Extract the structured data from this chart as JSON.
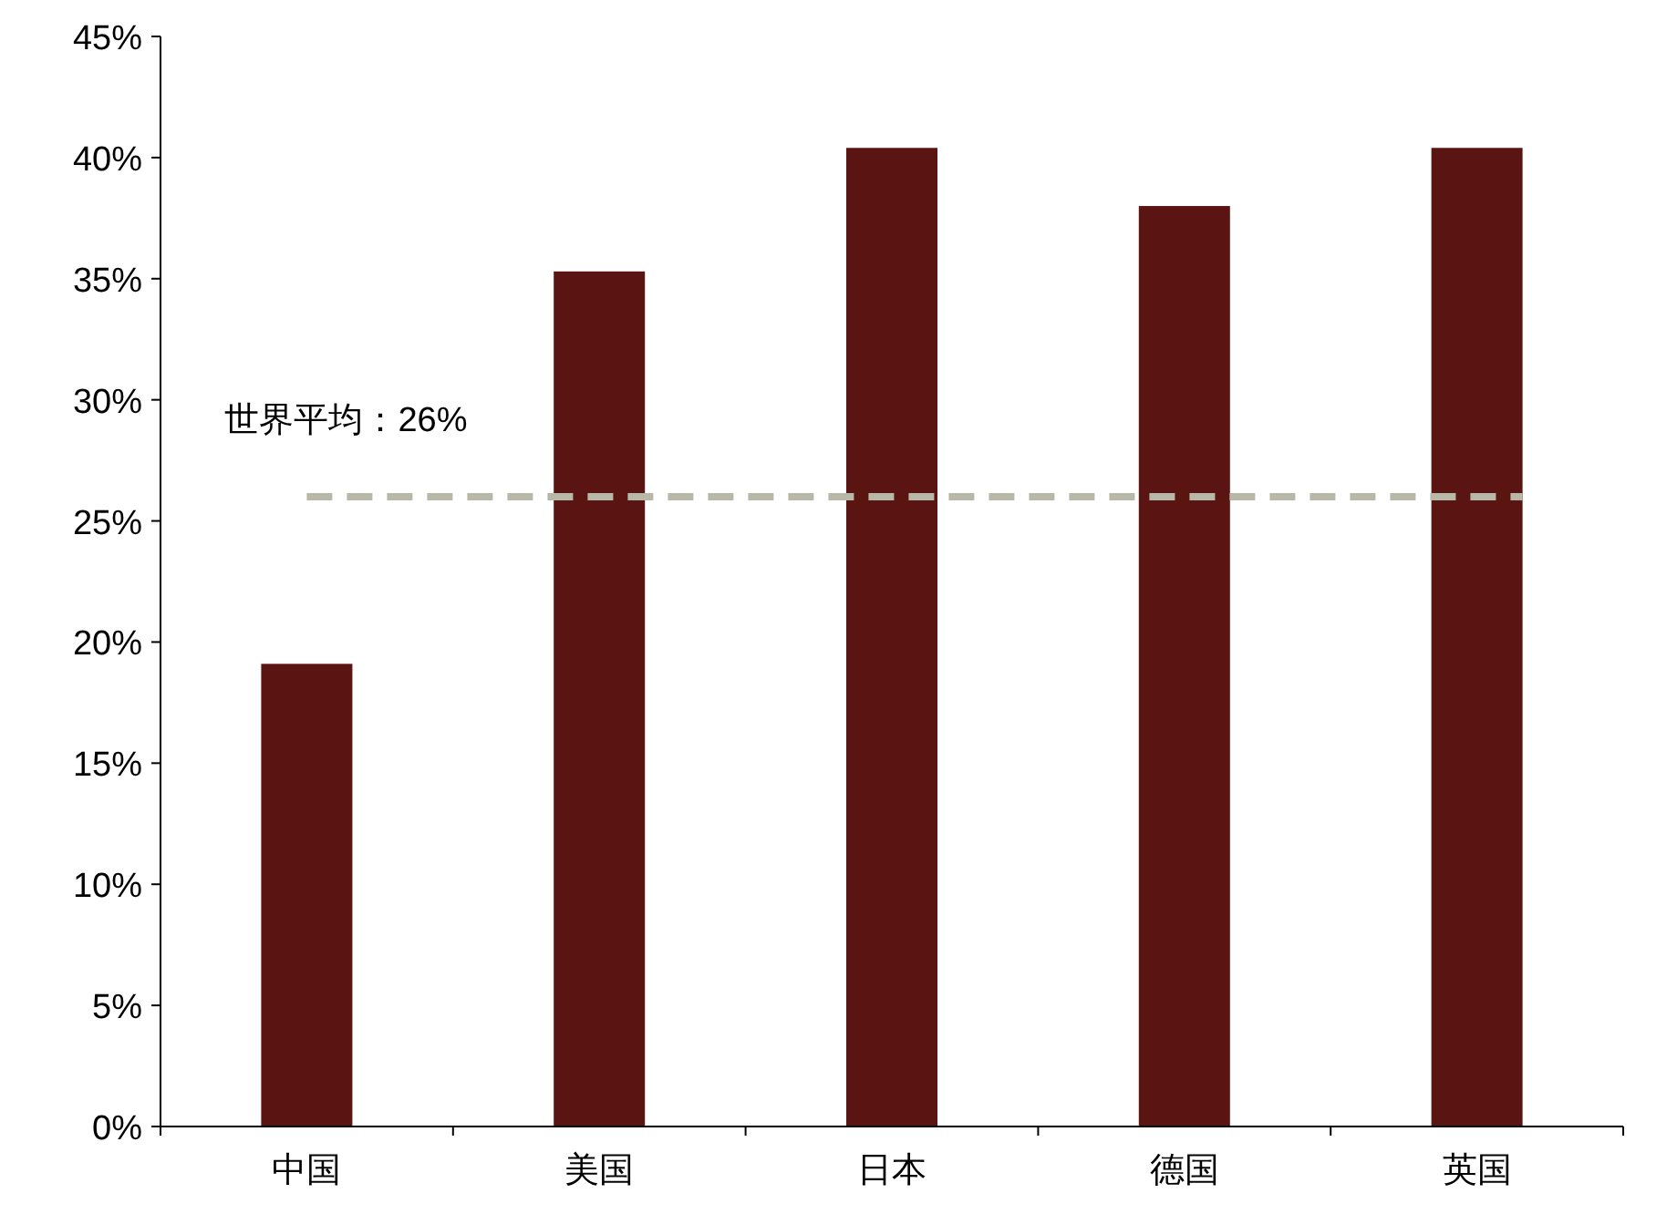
{
  "chart_data": {
    "type": "bar",
    "categories": [
      "中国",
      "美国",
      "日本",
      "德国",
      "英国"
    ],
    "values": [
      19.1,
      35.3,
      40.4,
      38.0,
      40.4
    ],
    "color": "#5a1512",
    "ylim": [
      0,
      45
    ],
    "yticks": [
      {
        "value": 0,
        "label": "0%"
      },
      {
        "value": 5,
        "label": "5%"
      },
      {
        "value": 10,
        "label": "10%"
      },
      {
        "value": 15,
        "label": "15%"
      },
      {
        "value": 20,
        "label": "20%"
      },
      {
        "value": 25,
        "label": "25%"
      },
      {
        "value": 30,
        "label": "30%"
      },
      {
        "value": 35,
        "label": "35%"
      },
      {
        "value": 40,
        "label": "40%"
      },
      {
        "value": 45,
        "label": "45%"
      }
    ],
    "ref_lines": [
      {
        "axis": "y",
        "value": 26,
        "label": "世界平均：26%",
        "color": "#b8b8a8",
        "line_style": "dashed"
      }
    ],
    "grid": false
  }
}
